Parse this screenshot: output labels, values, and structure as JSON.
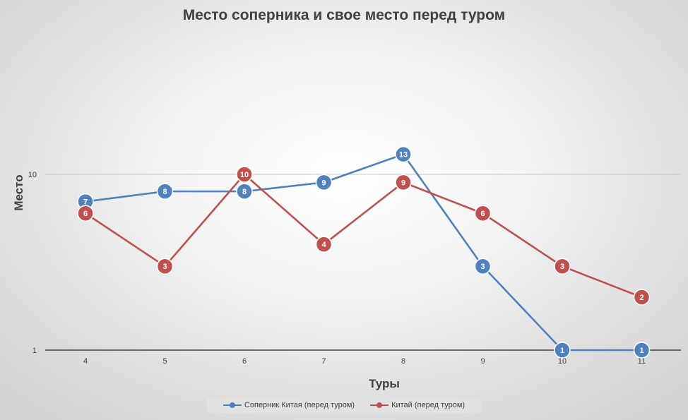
{
  "chart_data": {
    "type": "line",
    "title": "Место соперника и свое место перед туром",
    "xlabel": "Туры",
    "ylabel": "Место",
    "x": [
      4,
      5,
      6,
      7,
      8,
      9,
      10,
      11
    ],
    "y_scale": "log",
    "ylim": [
      1,
      100
    ],
    "y_ticks": [
      "1",
      "10"
    ],
    "grid": true,
    "legend_position": "bottom",
    "series": [
      {
        "name": "Соперник Китая (перед туром)",
        "color": "#4f81bd",
        "values": [
          7,
          8,
          8,
          9,
          13,
          3,
          1,
          1
        ]
      },
      {
        "name": "Китай (перед туром)",
        "color": "#c0504d",
        "values": [
          6,
          3,
          10,
          4,
          9,
          6,
          3,
          2
        ]
      }
    ]
  }
}
